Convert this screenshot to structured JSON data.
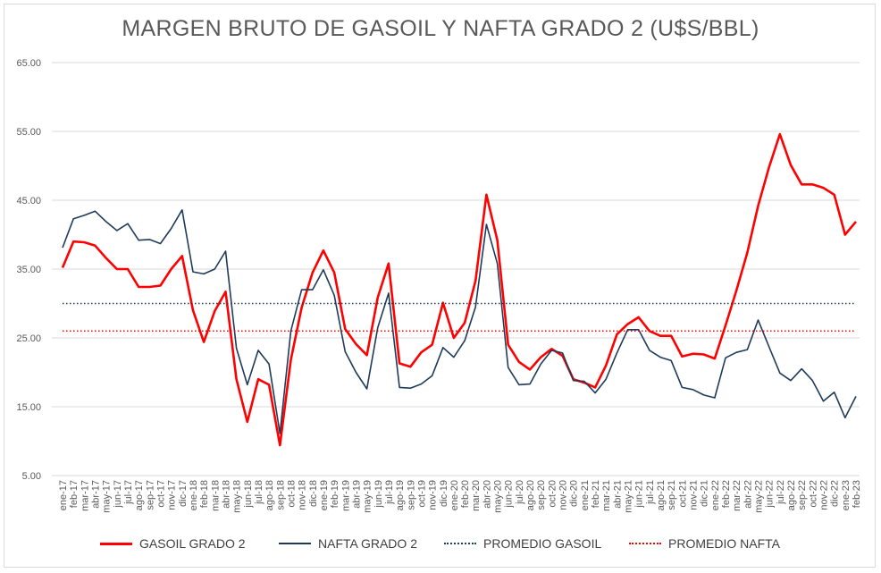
{
  "chart_data": {
    "type": "line",
    "title": "MARGEN BRUTO DE GASOIL Y NAFTA GRADO 2 (U$S/BBL)",
    "xlabel": "",
    "ylabel": "",
    "ylim": [
      5,
      65
    ],
    "yticks": [
      "5.00",
      "15.00",
      "25.00",
      "35.00",
      "45.00",
      "55.00",
      "65.00"
    ],
    "grid": true,
    "legend_position": "bottom",
    "categories": [
      "ene-17",
      "feb-17",
      "mar-17",
      "abr-17",
      "may-17",
      "jun-17",
      "jul-17",
      "ago-17",
      "sep-17",
      "oct-17",
      "nov-17",
      "dic-17",
      "ene-18",
      "feb-18",
      "mar-18",
      "abr-18",
      "may-18",
      "jun-18",
      "jul-18",
      "ago-18",
      "sep-18",
      "oct-18",
      "nov-18",
      "dic-18",
      "ene-19",
      "feb-19",
      "mar-19",
      "abr-19",
      "may-19",
      "jun-19",
      "jul-19",
      "ago-19",
      "sep-19",
      "oct-19",
      "nov-19",
      "dic-19",
      "ene-20",
      "feb-20",
      "mar-20",
      "abr-20",
      "may-20",
      "jun-20",
      "jul-20",
      "ago-20",
      "sep-20",
      "oct-20",
      "nov-20",
      "dic-20",
      "ene-21",
      "feb-21",
      "mar-21",
      "abr-21",
      "may-21",
      "jun-21",
      "jul-21",
      "ago-21",
      "sep-21",
      "oct-21",
      "nov-21",
      "dic-21",
      "ene-22",
      "feb-22",
      "mar-22",
      "abr-22",
      "may-22",
      "jun-22",
      "jul-22",
      "ago-22",
      "sep-22",
      "oct-22",
      "nov-22",
      "dic-22",
      "ene-23",
      "feb-23"
    ],
    "series": [
      {
        "name": "GASOIL GRADO 2",
        "color": "#ff0000",
        "style": "solid",
        "values": [
          35.2,
          39.0,
          38.9,
          38.4,
          36.6,
          35.0,
          35.0,
          32.4,
          32.4,
          32.6,
          35.0,
          36.9,
          29.0,
          24.4,
          28.9,
          31.7,
          19.0,
          12.8,
          19.0,
          18.2,
          9.4,
          21.8,
          29.4,
          34.5,
          37.7,
          34.5,
          26.3,
          24.1,
          22.5,
          30.9,
          35.8,
          21.3,
          20.8,
          22.9,
          24.0,
          30.1,
          25.0,
          27.2,
          33.3,
          45.8,
          39.2,
          24.0,
          21.5,
          20.4,
          22.2,
          23.4,
          22.4,
          19.0,
          18.5,
          17.8,
          21.0,
          25.5,
          27.0,
          28.0,
          26.0,
          25.3,
          25.3,
          22.3,
          22.7,
          22.6,
          22.0,
          26.8,
          31.9,
          37.4,
          44.2,
          49.8,
          54.6,
          50.1,
          47.3,
          47.3,
          46.8,
          45.8,
          40.0,
          41.9
        ]
      },
      {
        "name": "NAFTA GRADO 2",
        "color": "#1f3b5a",
        "style": "solid",
        "values": [
          38.1,
          42.3,
          42.8,
          43.4,
          41.9,
          40.6,
          41.6,
          39.2,
          39.3,
          38.7,
          40.9,
          43.6,
          34.6,
          34.3,
          35.0,
          37.6,
          23.5,
          18.2,
          23.2,
          21.2,
          11.1,
          26.0,
          32.0,
          32.0,
          34.9,
          31.2,
          23.0,
          20.0,
          17.6,
          26.5,
          31.5,
          17.8,
          17.7,
          18.3,
          19.5,
          23.6,
          22.2,
          24.6,
          29.5,
          41.5,
          35.8,
          20.7,
          18.2,
          18.3,
          21.2,
          23.2,
          22.8,
          18.8,
          18.7,
          17.0,
          19.0,
          22.8,
          26.2,
          26.2,
          23.2,
          22.2,
          21.7,
          17.8,
          17.5,
          16.7,
          16.3,
          22.1,
          22.9,
          23.3,
          27.6,
          23.7,
          19.9,
          18.8,
          20.5,
          18.8,
          15.8,
          17.1,
          13.4,
          16.5
        ]
      },
      {
        "name": "PROMEDIO GASOIL",
        "color": "#1f3b5a",
        "style": "dotted",
        "constant": 30.0
      },
      {
        "name": "PROMEDIO NAFTA",
        "color": "#ff0000",
        "style": "dotted",
        "constant": 26.0
      }
    ]
  }
}
